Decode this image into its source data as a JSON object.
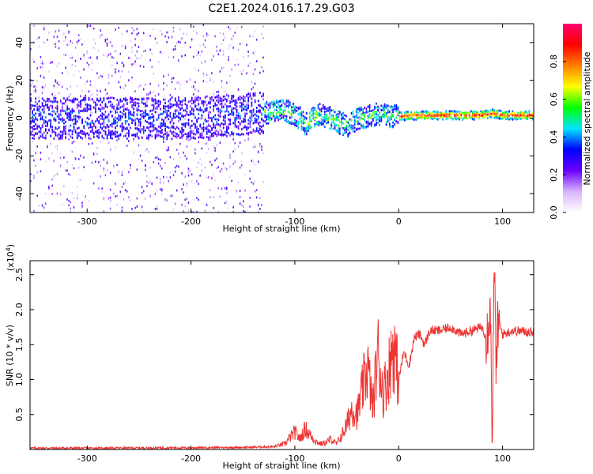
{
  "title": "C2E1.2024.016.17.29.G03",
  "chart_data": [
    {
      "type": "heatmap",
      "name": "spectrogram",
      "xlabel": "Height of straight line (km)",
      "ylabel": "Frequency (Hz)",
      "xlim": [
        -355,
        130
      ],
      "ylim": [
        -50,
        50
      ],
      "xticks": [
        -300,
        -200,
        -100,
        0,
        100
      ],
      "xtick_labels": [
        "-300",
        "-200",
        "-100",
        "0",
        "100"
      ],
      "yticks": [
        -40,
        -20,
        0,
        20,
        40
      ],
      "ytick_labels": [
        "-40",
        "-20",
        "0",
        "20",
        "40"
      ],
      "colorbar": {
        "label": "Normalized spectral amplitude",
        "range": [
          0,
          1
        ],
        "ticks": [
          0.0,
          0.2,
          0.4,
          0.6,
          0.8
        ],
        "tick_labels": [
          "0.0",
          "0.2",
          "0.4",
          "0.6",
          "0.8"
        ],
        "stops": [
          "#ffffff",
          "#d9b3ff",
          "#6a00ff",
          "#0000ff",
          "#00e5ff",
          "#00ff00",
          "#ffff00",
          "#ff8000",
          "#ff0000",
          "#ff0070"
        ]
      },
      "ridge": {
        "x": [
          -355,
          -300,
          -250,
          -200,
          -150,
          -130,
          -110,
          -100,
          -90,
          -80,
          -70,
          -60,
          -50,
          -40,
          -30,
          -20,
          -10,
          0,
          20,
          50,
          80,
          90,
          100,
          110,
          130
        ],
        "frequency": [
          0,
          0,
          0,
          0,
          2,
          3,
          4,
          2,
          -3,
          2,
          1,
          -2,
          -4,
          0,
          1,
          2,
          1,
          1,
          1.5,
          1.5,
          1.5,
          2.5,
          1.5,
          1.5,
          1.5
        ]
      }
    },
    {
      "type": "line",
      "name": "snr",
      "xlabel": "Height of straight line (km)",
      "ylabel": "SNR (10 * v/v)",
      "multiplier_label": "(x10",
      "multiplier_exp": "4",
      "multiplier_close": ")",
      "xlim": [
        -355,
        130
      ],
      "ylim": [
        0,
        27000
      ],
      "xticks": [
        -300,
        -200,
        -100,
        0,
        100
      ],
      "xtick_labels": [
        "-300",
        "-200",
        "-100",
        "0",
        "100"
      ],
      "yticks": [
        5000,
        10000,
        15000,
        20000,
        25000
      ],
      "ytick_labels": [
        "0.5",
        "1.0",
        "1.5",
        "2.0",
        "2.5"
      ],
      "color": "#ee3333",
      "series": [
        {
          "x": [
            -355,
            -300,
            -200,
            -150,
            -120,
            -110,
            -100,
            -95,
            -90,
            -85,
            -80,
            -75,
            -70,
            -65,
            -60,
            -55,
            -50,
            -45,
            -40,
            -35,
            -30,
            -25,
            -20,
            -15,
            -10,
            -5,
            0,
            5,
            10,
            15,
            20,
            25,
            30,
            40,
            50,
            60,
            70,
            80,
            85,
            88,
            90,
            92,
            94,
            96,
            100,
            110,
            130
          ],
          "y": [
            200,
            200,
            250,
            300,
            400,
            800,
            2500,
            1500,
            3000,
            2000,
            1200,
            800,
            1000,
            1500,
            800,
            2000,
            3500,
            6000,
            5000,
            8500,
            12000,
            6000,
            14000,
            8000,
            11000,
            15000,
            10000,
            14000,
            12000,
            16000,
            16500,
            15000,
            17000,
            17000,
            17500,
            16500,
            17000,
            17500,
            16000,
            22000,
            3000,
            25000,
            12000,
            18500,
            16500,
            17000,
            16800
          ]
        }
      ]
    }
  ]
}
